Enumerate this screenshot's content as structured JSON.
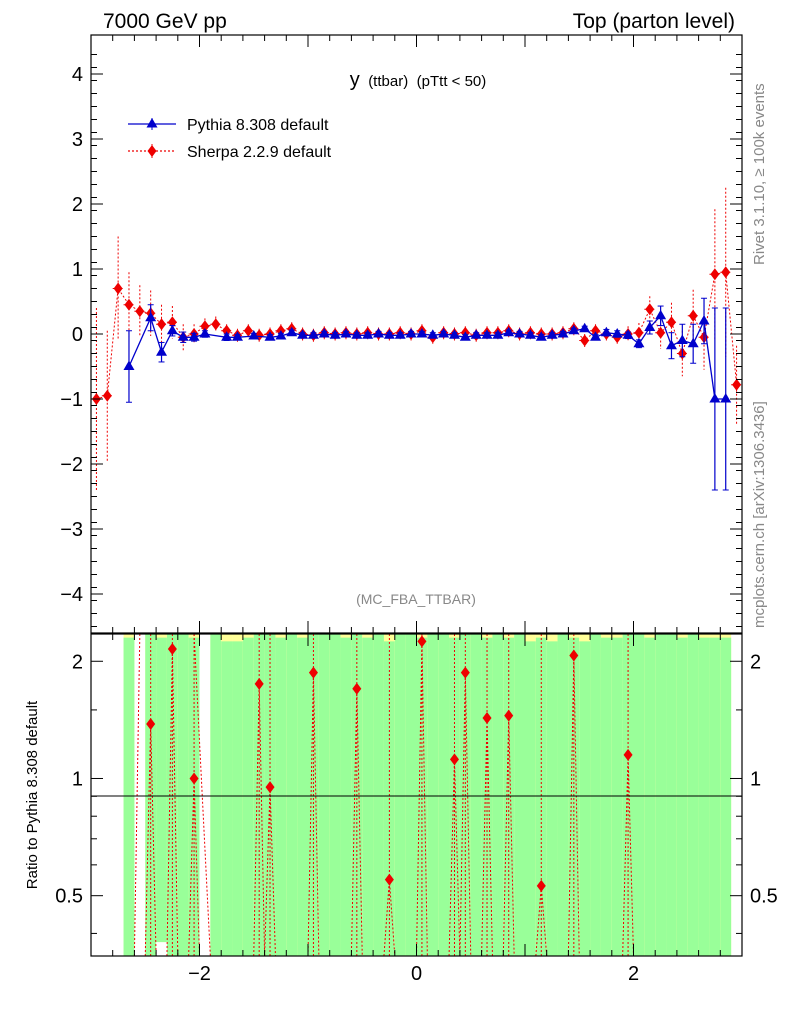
{
  "header": {
    "left": "7000 GeV pp",
    "right": "Top (parton level)"
  },
  "plot_title": {
    "main": "y",
    "sub": "(ttbar)",
    "cut": "(pTtt < 50)"
  },
  "analysis_label": "(MC_FBA_TTBAR)",
  "side_labels": {
    "rivet": "Rivet 3.1.10, ≥ 100k events",
    "mcplots": "mcplots.cern.ch [arXiv:1306.3436]"
  },
  "ratio_ylabel": "Ratio to Pythia 8.308 default",
  "colors": {
    "pythia": "#0000cc",
    "sherpa": "#ee0000",
    "band_green": "#99ff99",
    "band_yellow": "#ffff99"
  },
  "chart_data": [
    {
      "type": "line",
      "panel": "main",
      "xlim": [
        -3.0,
        3.0
      ],
      "ylim": [
        -4.6,
        4.6
      ],
      "yticks": [
        "4",
        "3",
        "2",
        "1",
        "0",
        "−1",
        "−2",
        "−3",
        "−4"
      ],
      "legend_position": "top-left",
      "series": [
        {
          "name": "Pythia 8.308 default",
          "marker": "triangle",
          "x": [
            -2.65,
            -2.45,
            -2.35,
            -2.25,
            -2.15,
            -2.05,
            -1.95,
            -1.75,
            -1.65,
            -1.5,
            -1.35,
            -1.25,
            -1.15,
            -1.05,
            -0.95,
            -0.85,
            -0.75,
            -0.65,
            -0.55,
            -0.45,
            -0.35,
            -0.25,
            -0.15,
            -0.05,
            0.05,
            0.15,
            0.25,
            0.35,
            0.45,
            0.55,
            0.65,
            0.75,
            0.85,
            0.95,
            1.05,
            1.15,
            1.25,
            1.35,
            1.45,
            1.55,
            1.65,
            1.75,
            1.85,
            1.95,
            2.05,
            2.15,
            2.25,
            2.35,
            2.45,
            2.55,
            2.65,
            2.75,
            2.85
          ],
          "y": [
            -0.5,
            0.25,
            -0.28,
            0.05,
            -0.05,
            -0.05,
            0.0,
            -0.05,
            -0.05,
            -0.03,
            -0.05,
            -0.03,
            0.02,
            -0.02,
            -0.02,
            0.0,
            -0.02,
            0.0,
            -0.02,
            -0.02,
            0.0,
            -0.02,
            -0.02,
            0.0,
            0.0,
            -0.02,
            0.0,
            -0.02,
            -0.05,
            -0.02,
            -0.02,
            -0.02,
            0.02,
            0.0,
            -0.02,
            -0.05,
            -0.02,
            0.0,
            0.05,
            0.08,
            -0.05,
            0.02,
            0.0,
            -0.02,
            -0.15,
            0.1,
            0.28,
            -0.18,
            -0.1,
            -0.15,
            0.2,
            -1.0,
            -1.0
          ],
          "err": [
            0.55,
            0.2,
            0.15,
            0.08,
            0.08,
            0.06,
            0.05,
            0.05,
            0.04,
            0.04,
            0.04,
            0.04,
            0.04,
            0.04,
            0.04,
            0.04,
            0.04,
            0.04,
            0.04,
            0.04,
            0.04,
            0.04,
            0.04,
            0.04,
            0.04,
            0.04,
            0.04,
            0.04,
            0.04,
            0.04,
            0.04,
            0.04,
            0.04,
            0.04,
            0.04,
            0.04,
            0.04,
            0.04,
            0.04,
            0.04,
            0.04,
            0.05,
            0.05,
            0.05,
            0.06,
            0.1,
            0.15,
            0.2,
            0.25,
            0.3,
            0.35,
            1.4,
            1.4
          ]
        },
        {
          "name": "Sherpa 2.2.9 default",
          "marker": "diamond",
          "x": [
            -2.95,
            -2.85,
            -2.75,
            -2.65,
            -2.55,
            -2.45,
            -2.35,
            -2.25,
            -2.15,
            -2.05,
            -1.95,
            -1.85,
            -1.75,
            -1.65,
            -1.55,
            -1.45,
            -1.35,
            -1.25,
            -1.15,
            -1.05,
            -0.95,
            -0.85,
            -0.75,
            -0.65,
            -0.55,
            -0.45,
            -0.35,
            -0.25,
            -0.15,
            -0.05,
            0.05,
            0.15,
            0.25,
            0.35,
            0.45,
            0.55,
            0.65,
            0.75,
            0.85,
            0.95,
            1.05,
            1.15,
            1.25,
            1.35,
            1.45,
            1.55,
            1.65,
            1.75,
            1.85,
            1.95,
            2.05,
            2.15,
            2.25,
            2.35,
            2.45,
            2.55,
            2.65,
            2.75,
            2.85,
            2.95
          ],
          "y": [
            -1.0,
            -0.95,
            0.7,
            0.45,
            0.35,
            0.32,
            0.15,
            0.18,
            -0.05,
            0.0,
            0.12,
            0.15,
            0.05,
            -0.02,
            0.05,
            -0.02,
            0.0,
            0.05,
            0.08,
            0.0,
            -0.02,
            0.02,
            0.0,
            0.02,
            0.0,
            0.02,
            0.0,
            0.0,
            0.02,
            0.0,
            0.05,
            -0.05,
            0.02,
            0.0,
            0.02,
            -0.02,
            0.02,
            0.02,
            0.05,
            0.0,
            0.02,
            0.0,
            0.0,
            0.02,
            0.08,
            -0.1,
            0.05,
            0.0,
            -0.05,
            0.0,
            0.02,
            0.38,
            0.02,
            0.18,
            -0.3,
            0.28,
            -0.05,
            0.92,
            0.95,
            -0.78
          ],
          "err": [
            1.4,
            1.0,
            0.8,
            0.5,
            0.4,
            0.35,
            0.3,
            0.25,
            0.2,
            0.15,
            0.12,
            0.12,
            0.1,
            0.1,
            0.1,
            0.1,
            0.1,
            0.1,
            0.1,
            0.1,
            0.1,
            0.1,
            0.1,
            0.1,
            0.1,
            0.1,
            0.1,
            0.1,
            0.1,
            0.1,
            0.1,
            0.1,
            0.1,
            0.1,
            0.1,
            0.1,
            0.1,
            0.1,
            0.1,
            0.1,
            0.1,
            0.1,
            0.1,
            0.1,
            0.1,
            0.1,
            0.1,
            0.1,
            0.1,
            0.12,
            0.15,
            0.2,
            0.25,
            0.3,
            0.35,
            0.4,
            0.5,
            1.0,
            1.3,
            0.6
          ]
        }
      ]
    },
    {
      "type": "line",
      "panel": "ratio",
      "xlim": [
        -3.0,
        3.0
      ],
      "ylim": [
        0.35,
        2.35
      ],
      "xticks": [
        "−2",
        "0",
        "2"
      ],
      "yticks": [
        "2",
        "1",
        "0.5"
      ],
      "reference_line": 1.0,
      "bands": {
        "x": [
          -2.65,
          -2.55,
          -2.45,
          -2.35,
          -2.25,
          -2.15,
          -2.05,
          -1.95,
          -1.85,
          -1.75,
          -1.65,
          -1.55,
          -1.45,
          -1.35,
          -1.25,
          -1.15,
          -1.05,
          -0.95,
          -0.85,
          -0.75,
          -0.65,
          -0.55,
          -0.45,
          -0.35,
          -0.25,
          -0.15,
          -0.05,
          0.05,
          0.15,
          0.25,
          0.35,
          0.45,
          0.55,
          0.65,
          0.75,
          0.85,
          0.95,
          1.05,
          1.15,
          1.25,
          1.35,
          1.45,
          1.55,
          1.65,
          1.75,
          1.85,
          1.95,
          2.05,
          2.15,
          2.25,
          2.35,
          2.45,
          2.55,
          2.65,
          2.75,
          2.85
        ],
        "green_top": [
          2.3,
          0.0,
          2.35,
          2.3,
          2.35,
          2.35,
          2.3,
          0.0,
          2.35,
          2.25,
          2.25,
          2.3,
          2.35,
          2.35,
          2.3,
          2.35,
          2.3,
          2.35,
          2.35,
          2.35,
          2.3,
          2.35,
          2.3,
          2.35,
          2.25,
          2.35,
          2.35,
          2.3,
          2.35,
          2.35,
          2.3,
          2.35,
          2.35,
          2.3,
          2.35,
          2.3,
          2.35,
          2.25,
          2.3,
          2.25,
          2.35,
          2.3,
          2.25,
          2.35,
          2.3,
          2.3,
          2.35,
          2.35,
          2.3,
          2.35,
          2.35,
          2.3,
          2.35,
          2.3,
          2.3,
          2.3
        ],
        "green_bottom": [
          0.35,
          0.35,
          0.35,
          0.38,
          0.35,
          0.35,
          0.35,
          0.35,
          0.35,
          0.35,
          0.35,
          0.35,
          0.35,
          0.35,
          0.35,
          0.35,
          0.35,
          0.35,
          0.35,
          0.35,
          0.35,
          0.35,
          0.35,
          0.35,
          0.35,
          0.35,
          0.35,
          0.35,
          0.35,
          0.35,
          0.35,
          0.35,
          0.35,
          0.35,
          0.35,
          0.35,
          0.35,
          0.35,
          0.35,
          0.35,
          0.35,
          0.35,
          0.35,
          0.35,
          0.35,
          0.35,
          0.35,
          0.35,
          0.35,
          0.35,
          0.35,
          0.35,
          0.35,
          0.35,
          0.35,
          0.35
        ],
        "yellow_top": [
          2.35,
          0.0,
          2.35,
          2.35,
          2.35,
          2.35,
          2.35,
          0.0,
          2.35,
          2.35,
          2.35,
          2.35,
          2.35,
          2.35,
          2.35,
          2.35,
          2.35,
          2.35,
          2.35,
          2.35,
          2.35,
          2.35,
          2.35,
          2.35,
          2.35,
          2.35,
          2.35,
          2.35,
          2.35,
          2.35,
          2.35,
          2.35,
          2.35,
          2.35,
          2.35,
          2.35,
          2.35,
          2.35,
          2.35,
          2.35,
          2.35,
          2.35,
          2.35,
          2.35,
          2.35,
          2.35,
          2.35,
          2.35,
          2.35,
          2.35,
          2.35,
          2.35,
          2.35,
          2.35,
          2.35,
          2.35
        ]
      },
      "series": [
        {
          "name": "Sherpa 2.2.9 default",
          "x": [
            -2.45,
            -2.25,
            -2.05,
            -1.45,
            -1.35,
            -0.95,
            -0.55,
            -0.25,
            0.05,
            0.35,
            0.45,
            0.65,
            0.85,
            1.15,
            1.45,
            1.95
          ],
          "y": [
            1.38,
            2.15,
            1.0,
            1.75,
            0.95,
            1.87,
            1.7,
            0.55,
            2.25,
            1.12,
            1.87,
            1.43,
            1.45,
            0.53,
            2.07,
            1.15
          ]
        }
      ]
    }
  ]
}
